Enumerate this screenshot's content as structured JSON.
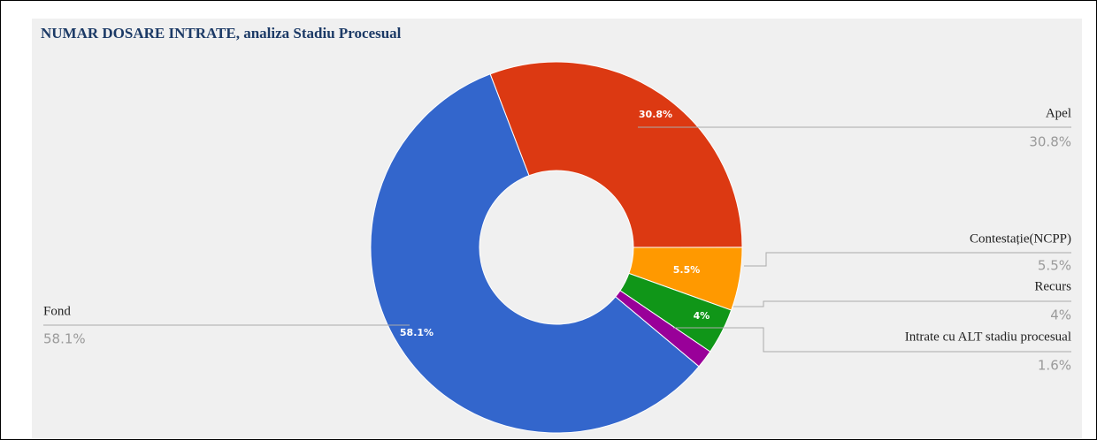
{
  "chart_data": {
    "type": "donut",
    "title": "NUMAR DOSARE INTRATE, analiza Stadiu Procesual",
    "categories": [
      "Apel",
      "Contestație(NCPP)",
      "Recurs",
      "Intrate cu ALT stadiu procesual",
      "Fond"
    ],
    "values": [
      30.8,
      5.5,
      4,
      1.6,
      58.1
    ],
    "value_labels": [
      "30.8%",
      "5.5%",
      "4%",
      "1.6%",
      "58.1%"
    ],
    "colors": [
      "#dc3912",
      "#ff9900",
      "#109618",
      "#990099",
      "#3366cc"
    ]
  }
}
